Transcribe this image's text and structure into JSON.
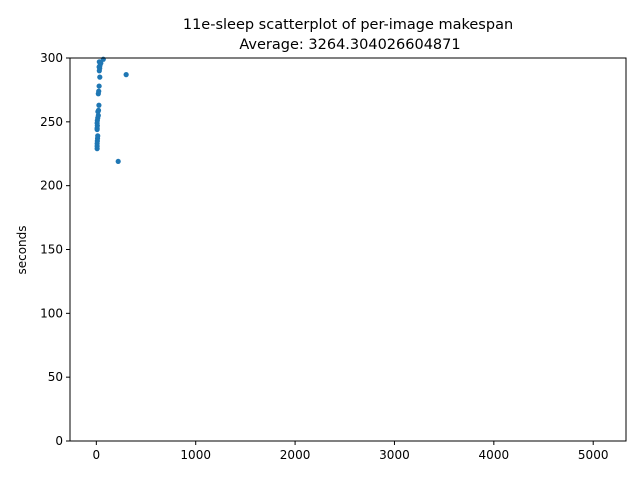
{
  "chart_data": {
    "type": "scatter",
    "title": "11e-sleep scatterplot of per-image makespan",
    "subtitle": "Average: 3264.304026604871",
    "xlabel": "",
    "ylabel": "seconds",
    "xlim": [
      -265,
      5330
    ],
    "ylim": [
      0,
      300
    ],
    "xticks": [
      0,
      1000,
      2000,
      3000,
      4000,
      5000
    ],
    "yticks": [
      0,
      50,
      100,
      150,
      200,
      250,
      300
    ],
    "grid": false,
    "marker_color": "#1f77b4",
    "points": [
      {
        "x": 8,
        "y": 229
      },
      {
        "x": 8,
        "y": 231
      },
      {
        "x": 8,
        "y": 233
      },
      {
        "x": 10,
        "y": 235
      },
      {
        "x": 12,
        "y": 237
      },
      {
        "x": 14,
        "y": 239
      },
      {
        "x": 8,
        "y": 244
      },
      {
        "x": 8,
        "y": 245
      },
      {
        "x": 10,
        "y": 247
      },
      {
        "x": 8,
        "y": 249
      },
      {
        "x": 10,
        "y": 251
      },
      {
        "x": 14,
        "y": 253
      },
      {
        "x": 20,
        "y": 255
      },
      {
        "x": 16,
        "y": 258
      },
      {
        "x": 22,
        "y": 259
      },
      {
        "x": 26,
        "y": 263
      },
      {
        "x": 20,
        "y": 272
      },
      {
        "x": 24,
        "y": 274
      },
      {
        "x": 28,
        "y": 278
      },
      {
        "x": 35,
        "y": 285
      },
      {
        "x": 30,
        "y": 290
      },
      {
        "x": 34,
        "y": 292
      },
      {
        "x": 28,
        "y": 293
      },
      {
        "x": 36,
        "y": 294
      },
      {
        "x": 45,
        "y": 296
      },
      {
        "x": 30,
        "y": 297
      },
      {
        "x": 70,
        "y": 299
      },
      {
        "x": 300,
        "y": 287
      },
      {
        "x": 220,
        "y": 219
      }
    ]
  }
}
